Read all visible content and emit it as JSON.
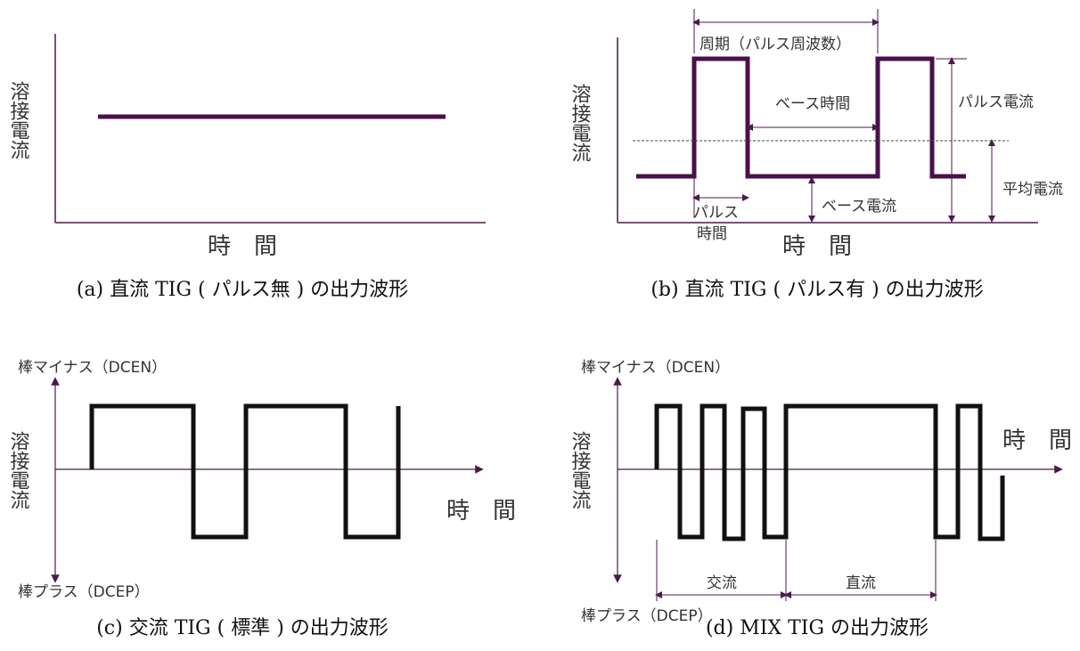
{
  "panels": {
    "a": {
      "caption": "(a) 直流 TIG ( パルス無 ) の出力波形",
      "y_label": "溶接電流",
      "x_label": "時　間"
    },
    "b": {
      "caption": "(b) 直流 TIG ( パルス有 ) の出力波形",
      "y_label": "溶接電流",
      "x_label": "時　間",
      "period_label": "周期（パルス周波数）",
      "base_time_label": "ベース時間",
      "pulse_current_label": "パルス電流",
      "average_current_label": "平均電流",
      "base_current_label": "ベース電流",
      "pulse_time_label_1": "パルス",
      "pulse_time_label_2": "時間"
    },
    "c": {
      "caption": "(c) 交流 TIG ( 標準 ) の出力波形",
      "y_label": "溶接電流",
      "x_label": "時　間",
      "top_label": "棒マイナス（DCEN）",
      "bottom_label": "棒プラス（DCEP）"
    },
    "d": {
      "caption": "(d) MIX TIG の出力波形",
      "y_label": "溶接電流",
      "x_label": "時　間",
      "top_label": "棒マイナス（DCEN）",
      "bottom_label": "棒プラス（DCEP）",
      "ac_label": "交流",
      "dc_label": "直流"
    }
  },
  "colors": {
    "axis_purple": "#4a1a4a",
    "wave_purple": "#4b0f4b",
    "wave_black": "#111111",
    "text_gray": "#333333"
  }
}
